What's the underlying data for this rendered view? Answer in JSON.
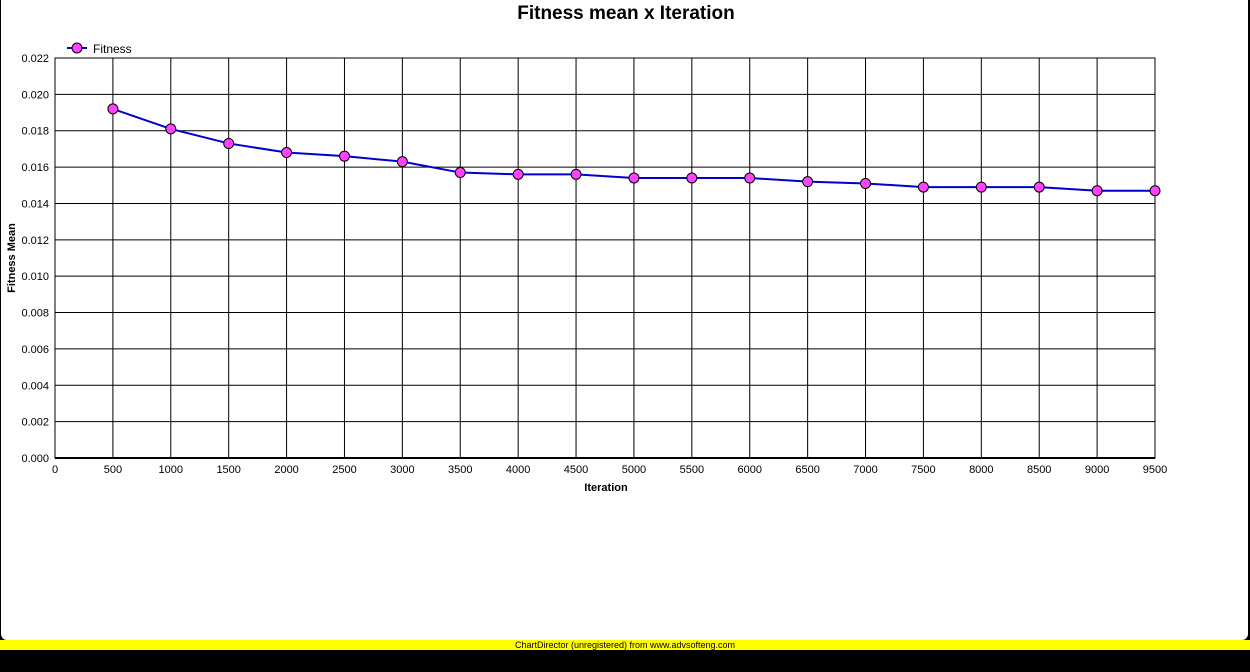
{
  "colors": {
    "line": "#0000cc",
    "marker_fill": "#ff44ff",
    "marker_stroke": "#000000",
    "grid": "#000000",
    "banner": "#ffff00"
  },
  "footer": {
    "banner_text": "ChartDirector (unregistered) from www.advsofteng.com"
  },
  "chart_data": {
    "type": "line",
    "title": "Fitness mean x Iteration",
    "xlabel": "Iteration",
    "ylabel": "Fitness Mean",
    "xlim": [
      0,
      9500
    ],
    "ylim": [
      0,
      0.022
    ],
    "x_ticks": [
      "0",
      "500",
      "1000",
      "1500",
      "2000",
      "2500",
      "3000",
      "3500",
      "4000",
      "4500",
      "5000",
      "5500",
      "6000",
      "6500",
      "7000",
      "7500",
      "8000",
      "8500",
      "9000",
      "9500"
    ],
    "y_ticks": [
      "0.000",
      "0.002",
      "0.004",
      "0.006",
      "0.008",
      "0.010",
      "0.012",
      "0.014",
      "0.016",
      "0.018",
      "0.020",
      "0.022"
    ],
    "grid": true,
    "legend_position": "top-left",
    "series": [
      {
        "name": "Fitness",
        "x": [
          500,
          1000,
          1500,
          2000,
          2500,
          3000,
          3500,
          4000,
          4500,
          5000,
          5500,
          6000,
          6500,
          7000,
          7500,
          8000,
          8500,
          9000,
          9500
        ],
        "values": [
          0.0192,
          0.0181,
          0.0173,
          0.0168,
          0.0166,
          0.0163,
          0.0157,
          0.0156,
          0.0156,
          0.0154,
          0.0154,
          0.0154,
          0.0152,
          0.0151,
          0.0149,
          0.0149,
          0.0149,
          0.0147,
          0.0147
        ]
      }
    ]
  }
}
